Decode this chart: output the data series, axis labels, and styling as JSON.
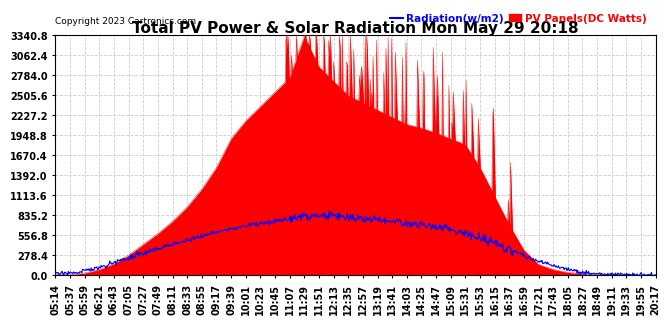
{
  "title": "Total PV Power & Solar Radiation Mon May 29 20:18",
  "copyright": "Copyright 2023 Cartronics.com",
  "legend_radiation": "Radiation(w/m2)",
  "legend_pv": "PV Panels(DC Watts)",
  "legend_radiation_color": "blue",
  "legend_pv_color": "red",
  "ymax": 3340.8,
  "yticks": [
    0.0,
    278.4,
    556.8,
    835.2,
    1113.6,
    1392.0,
    1670.4,
    1948.8,
    2227.2,
    2505.6,
    2784.0,
    3062.4,
    3340.8
  ],
  "background_color": "#ffffff",
  "plot_bg_color": "#ffffff",
  "grid_color": "#cccccc",
  "fill_color_pv": "red",
  "line_color_radiation": "blue",
  "title_fontsize": 11,
  "tick_fontsize": 7,
  "time_labels": [
    "05:14",
    "05:37",
    "05:59",
    "06:21",
    "06:43",
    "07:05",
    "07:27",
    "07:49",
    "08:11",
    "08:33",
    "08:55",
    "09:17",
    "09:39",
    "10:01",
    "10:23",
    "10:45",
    "11:07",
    "11:29",
    "11:51",
    "12:13",
    "12:35",
    "12:57",
    "13:19",
    "13:41",
    "14:03",
    "14:25",
    "14:47",
    "15:09",
    "15:31",
    "15:53",
    "16:15",
    "16:37",
    "16:59",
    "17:21",
    "17:43",
    "18:05",
    "18:27",
    "18:49",
    "19:11",
    "19:33",
    "19:55",
    "20:17"
  ],
  "pv_profile": [
    5,
    8,
    30,
    80,
    160,
    280,
    430,
    580,
    750,
    950,
    1200,
    1500,
    1900,
    2150,
    2350,
    2550,
    2750,
    3330,
    2900,
    2700,
    2500,
    2400,
    2300,
    2200,
    2100,
    2050,
    1980,
    1900,
    1820,
    1500,
    1100,
    700,
    350,
    150,
    80,
    40,
    20,
    8,
    3,
    1,
    0,
    0
  ],
  "rad_profile": [
    20,
    30,
    60,
    110,
    180,
    240,
    310,
    370,
    430,
    490,
    545,
    600,
    650,
    690,
    720,
    750,
    790,
    820,
    835,
    830,
    810,
    790,
    770,
    750,
    730,
    700,
    670,
    635,
    590,
    530,
    450,
    360,
    270,
    190,
    130,
    80,
    45,
    25,
    12,
    5,
    2,
    0
  ]
}
